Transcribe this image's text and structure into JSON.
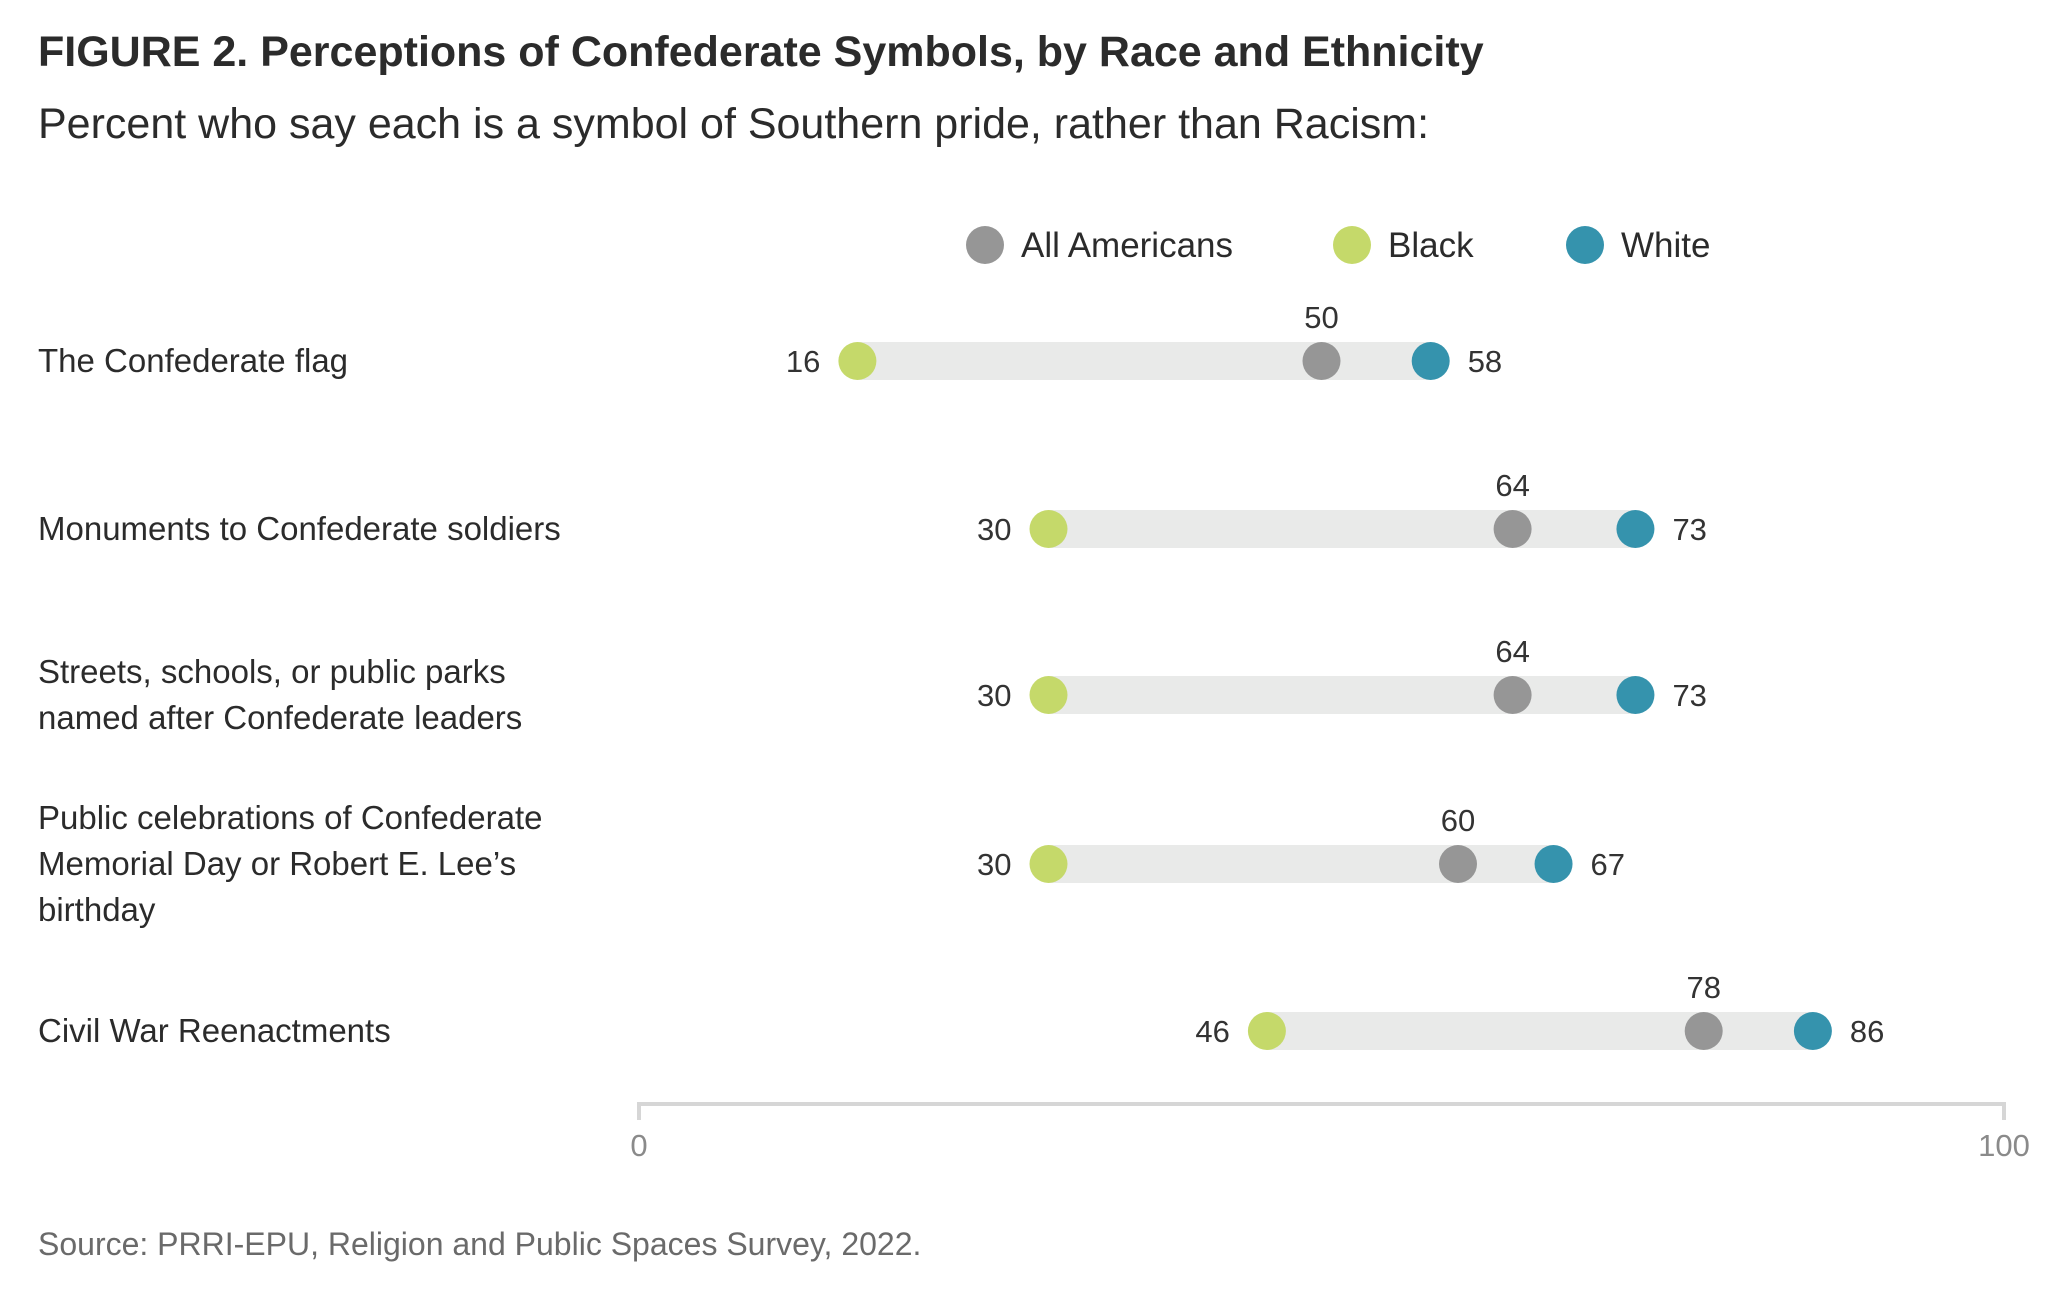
{
  "title": "FIGURE 2. Perceptions of Confederate Symbols, by Race and Ethnicity",
  "subtitle": "Percent who say each is a symbol of Southern pride, rather than Racism:",
  "source": "Source: PRRI-EPU, Religion and Public Spaces Survey, 2022.",
  "colors": {
    "all": "#969696",
    "black": "#c5d96a",
    "white": "#3593ad",
    "track": "#e9eae9",
    "axis": "#d6d6d6"
  },
  "chart_data": {
    "type": "dot-range",
    "xlim": [
      0,
      100
    ],
    "x_ticks": [
      "0",
      "100"
    ],
    "legend": {
      "placement": "top-center",
      "entries": [
        {
          "key": "all",
          "label": "All Americans"
        },
        {
          "key": "black",
          "label": "Black"
        },
        {
          "key": "white",
          "label": "White"
        }
      ]
    },
    "categories": [
      {
        "label_lines": [
          "The Confederate flag"
        ],
        "all": 50,
        "black": 16,
        "white": 58
      },
      {
        "label_lines": [
          "Monuments to Confederate soldiers"
        ],
        "all": 64,
        "black": 30,
        "white": 73
      },
      {
        "label_lines": [
          "Streets, schools, or public parks",
          "named after Confederate leaders"
        ],
        "all": 64,
        "black": 30,
        "white": 73
      },
      {
        "label_lines": [
          "Public celebrations of Confederate",
          "Memorial Day or Robert E. Lee’s",
          "birthday"
        ],
        "all": 60,
        "black": 30,
        "white": 67
      },
      {
        "label_lines": [
          "Civil War Reenactments"
        ],
        "all": 78,
        "black": 46,
        "white": 86
      }
    ]
  }
}
